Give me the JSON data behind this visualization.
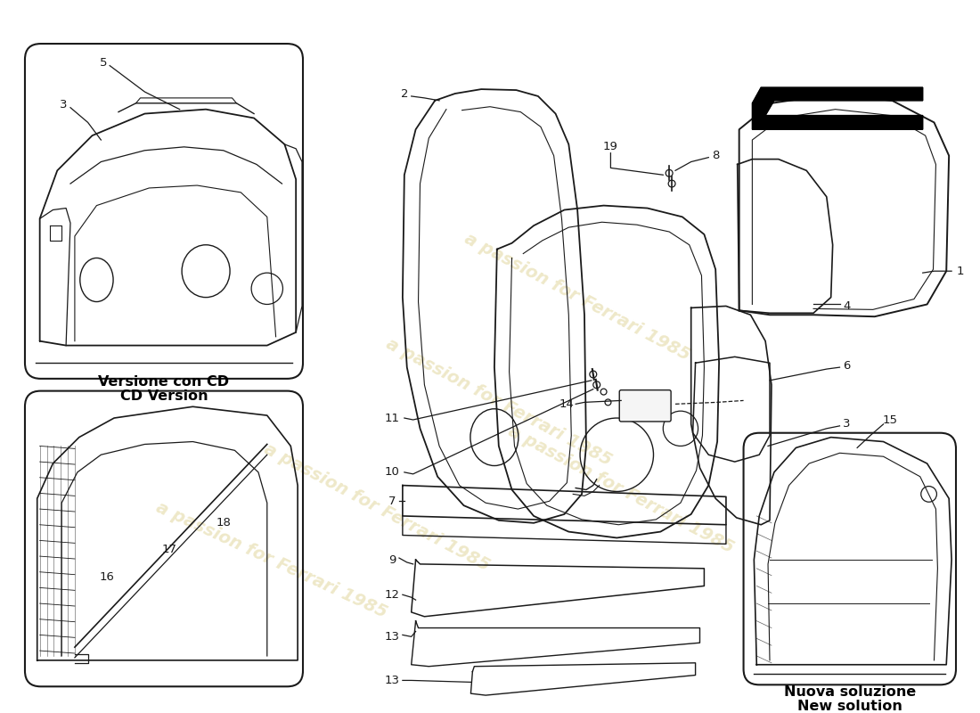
{
  "bg_color": "#ffffff",
  "line_color": "#1a1a1a",
  "label_color": "#000000",
  "watermark_text": "a passion for Ferrari 1985",
  "watermark_color": "#c8b44a",
  "watermark_alpha": 0.3,
  "box1_label1": "Versione con CD",
  "box1_label2": "CD Version",
  "box2_label1": "Nuova soluzione",
  "box2_label2": "New solution",
  "label_fontsize": 9.5,
  "caption_fontsize": 11.5
}
